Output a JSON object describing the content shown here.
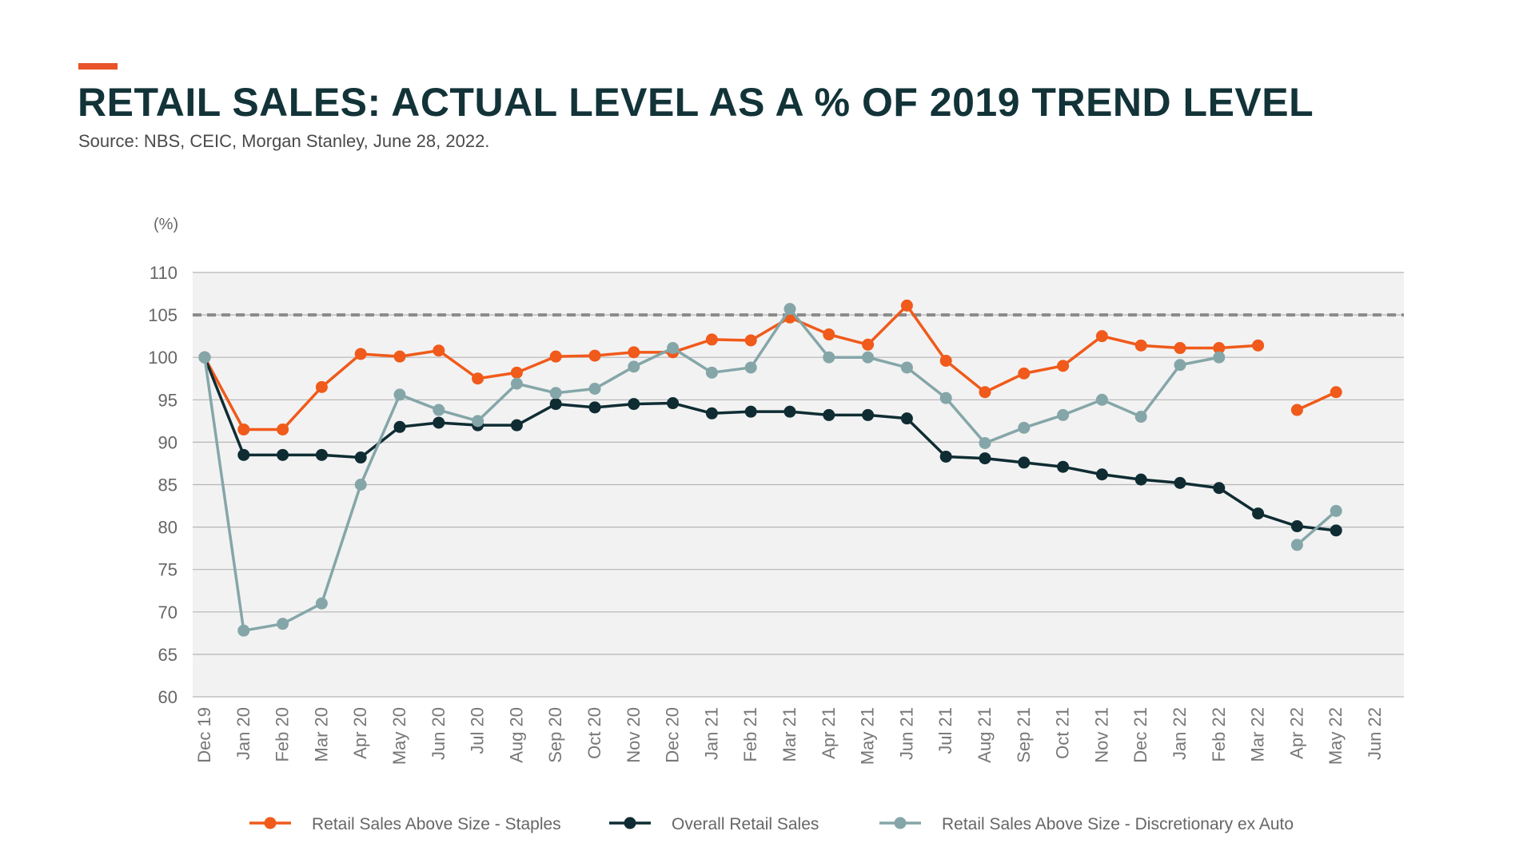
{
  "header": {
    "title": "RETAIL SALES: ACTUAL LEVEL AS A % OF 2019 TREND LEVEL",
    "source": "Source: NBS, CEIC, Morgan Stanley, June 28, 2022."
  },
  "chart_data": {
    "type": "line",
    "title": "RETAIL SALES: ACTUAL LEVEL AS A % OF 2019 TREND LEVEL",
    "ylabel": "(%)",
    "xlabel": "",
    "ylim": [
      60,
      110
    ],
    "yticks": [
      60,
      65,
      70,
      75,
      80,
      85,
      90,
      95,
      100,
      105,
      110
    ],
    "grid": true,
    "legend_position": "bottom",
    "reference_line": {
      "y": 105,
      "style": "dashed",
      "color": "#8a8a8a"
    },
    "categories": [
      "Dec 19",
      "Jan 20",
      "Feb 20",
      "Mar 20",
      "Apr 20",
      "May 20",
      "Jun 20",
      "Jul 20",
      "Aug 20",
      "Sep 20",
      "Oct 20",
      "Nov 20",
      "Dec 20",
      "Jan 21",
      "Feb 21",
      "Mar 21",
      "Apr 21",
      "May 21",
      "Jun 21",
      "Jul 21",
      "Aug 21",
      "Sep 21",
      "Oct 21",
      "Nov 21",
      "Dec 21",
      "Jan 22",
      "Feb 22",
      "Mar 22",
      "Apr 22",
      "May 22",
      "Jun 22"
    ],
    "series": [
      {
        "name": "Retail Sales Above Size - Staples",
        "color": "#f05a1a",
        "values": [
          100,
          91.5,
          91.5,
          96.5,
          100.4,
          100.1,
          100.8,
          97.5,
          98.2,
          100.1,
          100.2,
          100.6,
          100.6,
          102.1,
          102,
          104.7,
          102.7,
          101.5,
          106.1,
          99.6,
          95.9,
          98.1,
          99,
          102.5,
          101.4,
          101.1,
          101.1,
          101.4,
          93.8,
          95.9,
          null
        ],
        "gap_before_index": 28
      },
      {
        "name": "Overall Retail Sales",
        "color": "#0f2c33",
        "values": [
          100,
          88.5,
          88.5,
          88.5,
          88.2,
          91.8,
          92.3,
          92,
          92,
          94.5,
          94.1,
          94.5,
          94.6,
          93.4,
          93.6,
          93.6,
          93.2,
          93.2,
          92.8,
          88.3,
          88.1,
          87.6,
          87.1,
          86.2,
          85.6,
          85.2,
          84.6,
          81.6,
          80.1,
          79.6,
          null
        ]
      },
      {
        "name": "Retail Sales Above Size - Discretionary ex Auto",
        "color": "#85a6a8",
        "values": [
          100,
          67.8,
          68.6,
          71,
          85,
          95.6,
          93.8,
          92.5,
          96.9,
          95.8,
          96.3,
          98.9,
          101.1,
          98.2,
          98.8,
          105.7,
          100,
          100,
          98.8,
          95.2,
          89.9,
          91.7,
          93.2,
          95,
          93,
          99.1,
          100,
          null,
          77.9,
          81.9,
          null
        ]
      }
    ]
  }
}
